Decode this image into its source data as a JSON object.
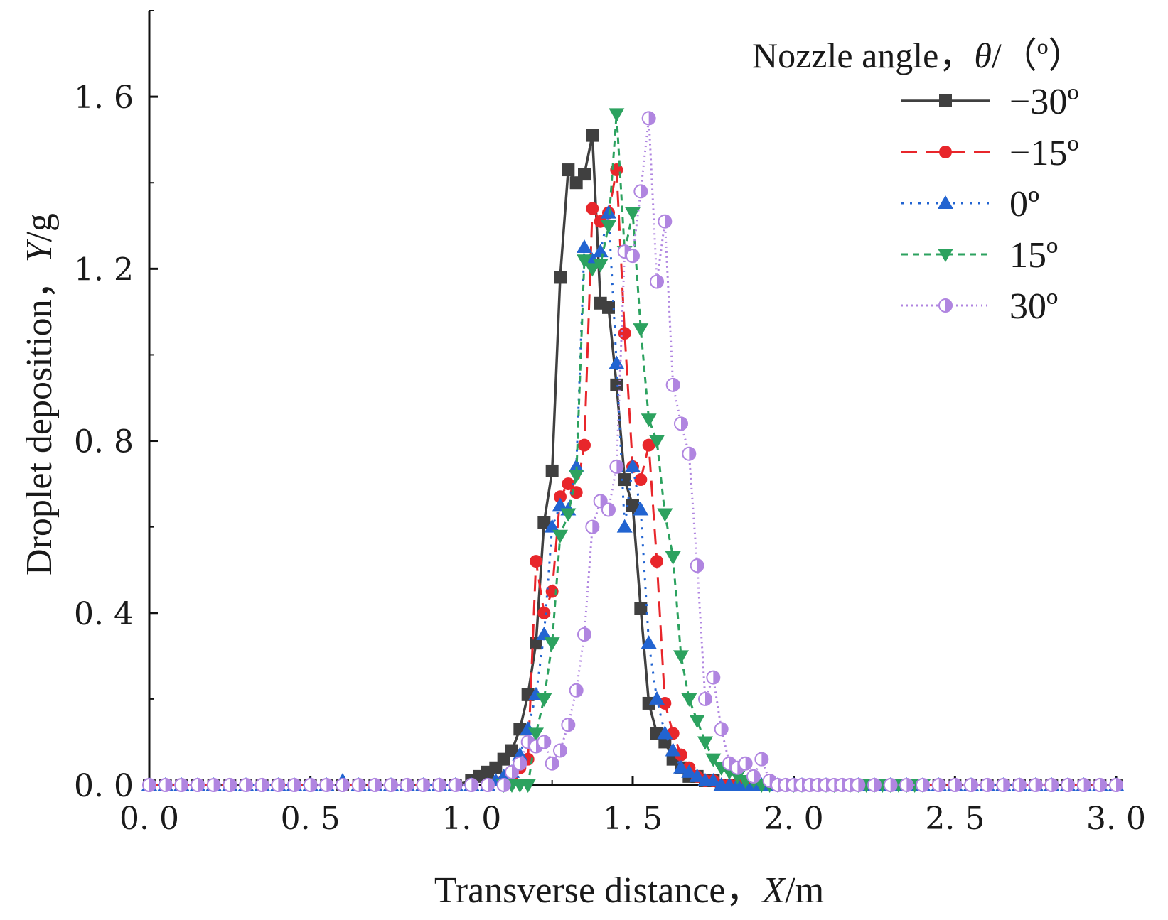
{
  "chart_data": {
    "type": "line",
    "title": "",
    "xlabel": {
      "prefix": "Transverse distance，",
      "var": "X",
      "unit": "/m"
    },
    "ylabel": {
      "prefix": "Droplet deposition，",
      "var": "Y",
      "unit": "/g"
    },
    "xlim": [
      0,
      3
    ],
    "ylim": [
      0,
      1.8
    ],
    "x_ticks": [
      0,
      0.5,
      1,
      1.5,
      2,
      2.5,
      3
    ],
    "x_tick_labels": [
      "0. 0",
      "0. 5",
      "1. 0",
      "1. 5",
      "2. 0",
      "2. 5",
      "3. 0"
    ],
    "y_ticks": [
      0,
      0.4,
      0.8,
      1.2,
      1.6
    ],
    "y_tick_labels": [
      "0. 0",
      "0. 4",
      "0. 8",
      "1. 2",
      "1. 6"
    ],
    "legend": {
      "title_prefix": "Nozzle angle，",
      "title_var": "θ",
      "title_suffix": "/（º）",
      "position": "top-right"
    },
    "series": [
      {
        "name": "−30º",
        "color": "#404040",
        "marker": "square",
        "dash": "solid",
        "x": [
          0.0,
          0.05,
          0.1,
          0.15,
          0.2,
          0.25,
          0.3,
          0.35,
          0.4,
          0.45,
          0.5,
          0.55,
          0.6,
          0.65,
          0.7,
          0.75,
          0.8,
          0.85,
          0.9,
          0.95,
          1.0,
          1.025,
          1.05,
          1.075,
          1.1,
          1.125,
          1.15,
          1.175,
          1.2,
          1.225,
          1.25,
          1.275,
          1.3,
          1.325,
          1.35,
          1.375,
          1.4,
          1.425,
          1.45,
          1.475,
          1.5,
          1.525,
          1.55,
          1.575,
          1.6,
          1.625,
          1.65,
          1.675,
          1.7,
          1.725,
          1.75,
          1.775,
          1.8,
          1.825,
          1.85,
          1.875,
          1.9,
          1.925,
          1.95,
          1.975,
          2.0,
          2.025,
          2.05,
          2.1,
          2.15,
          2.2,
          2.25,
          2.3,
          2.35,
          2.4,
          2.45,
          2.5,
          2.55,
          2.6,
          2.65,
          2.7,
          2.75,
          2.8,
          2.85,
          2.9,
          2.95,
          3.0
        ],
        "y": [
          0,
          0,
          0,
          0,
          0,
          0,
          0,
          0,
          0,
          0,
          0,
          0,
          0,
          0,
          0,
          0,
          0,
          0,
          0,
          0,
          0.01,
          0.02,
          0.03,
          0.04,
          0.06,
          0.08,
          0.13,
          0.21,
          0.33,
          0.61,
          0.73,
          1.18,
          1.43,
          1.4,
          1.42,
          1.51,
          1.12,
          1.11,
          0.93,
          0.71,
          0.65,
          0.41,
          0.19,
          0.12,
          0.1,
          0.06,
          0.04,
          0.02,
          0.02,
          0.01,
          0.01,
          0,
          0,
          0,
          0,
          0,
          0,
          0,
          0,
          0,
          0,
          0,
          0,
          0,
          0,
          0,
          0,
          0,
          0,
          0,
          0,
          0,
          0,
          0,
          0,
          0,
          0,
          0,
          0,
          0,
          0,
          0
        ]
      },
      {
        "name": "−15º",
        "color": "#e8262b",
        "marker": "diamond",
        "dash": "dashed",
        "x": [
          0.0,
          0.05,
          0.1,
          0.15,
          0.2,
          0.25,
          0.3,
          0.35,
          0.4,
          0.45,
          0.5,
          0.55,
          0.6,
          0.65,
          0.7,
          0.75,
          0.8,
          0.85,
          0.9,
          0.95,
          1.0,
          1.05,
          1.1,
          1.125,
          1.15,
          1.175,
          1.2,
          1.225,
          1.25,
          1.275,
          1.3,
          1.325,
          1.35,
          1.375,
          1.4,
          1.425,
          1.45,
          1.475,
          1.5,
          1.525,
          1.55,
          1.575,
          1.6,
          1.625,
          1.65,
          1.675,
          1.7,
          1.725,
          1.75,
          1.775,
          1.8,
          1.825,
          1.85,
          1.875,
          1.9,
          1.925,
          1.95,
          1.975,
          2.0,
          2.025,
          2.05,
          2.1,
          2.15,
          2.2,
          2.25,
          2.3,
          2.35,
          2.4,
          2.45,
          2.5,
          2.55,
          2.6,
          2.65,
          2.7,
          2.75,
          2.8,
          2.85,
          2.9,
          2.95,
          3.0
        ],
        "y": [
          0,
          0,
          0,
          0,
          0,
          0,
          0,
          0,
          0,
          0,
          0,
          0,
          0,
          0,
          0,
          0,
          0,
          0,
          0,
          0,
          0,
          0,
          0.01,
          0.02,
          0.04,
          0.06,
          0.52,
          0.4,
          0.45,
          0.67,
          0.7,
          0.68,
          0.79,
          1.34,
          1.31,
          1.33,
          1.43,
          1.05,
          0.74,
          0.71,
          0.79,
          0.52,
          0.19,
          0.12,
          0.07,
          0.04,
          0.02,
          0.01,
          0.01,
          0,
          0,
          0,
          0,
          0,
          0,
          0,
          0,
          0,
          0,
          0,
          0,
          0,
          0,
          0,
          0,
          0,
          0,
          0,
          0,
          0,
          0,
          0,
          0,
          0,
          0,
          0,
          0,
          0,
          0,
          0
        ]
      },
      {
        "name": "0º",
        "color": "#2264d1",
        "marker": "triangle-up",
        "dash": "dotted",
        "x": [
          0.0,
          0.05,
          0.1,
          0.15,
          0.2,
          0.25,
          0.3,
          0.35,
          0.4,
          0.45,
          0.5,
          0.55,
          0.6,
          0.65,
          0.7,
          0.75,
          0.8,
          0.85,
          0.9,
          0.95,
          1.0,
          1.05,
          1.075,
          1.1,
          1.125,
          1.15,
          1.175,
          1.2,
          1.225,
          1.25,
          1.275,
          1.3,
          1.325,
          1.35,
          1.375,
          1.4,
          1.425,
          1.45,
          1.475,
          1.5,
          1.525,
          1.55,
          1.575,
          1.6,
          1.625,
          1.65,
          1.675,
          1.7,
          1.725,
          1.75,
          1.775,
          1.8,
          1.825,
          1.85,
          1.875,
          1.9,
          1.925,
          1.95,
          1.975,
          2.0,
          2.025,
          2.05,
          2.1,
          2.15,
          2.2,
          2.25,
          2.3,
          2.35,
          2.4,
          2.45,
          2.5,
          2.55,
          2.6,
          2.65,
          2.7,
          2.75,
          2.8,
          2.85,
          2.9,
          2.95,
          3.0
        ],
        "y": [
          0,
          0,
          0,
          0,
          0,
          0,
          0,
          0,
          0,
          0,
          0,
          0,
          0.01,
          0,
          0,
          0,
          0,
          0,
          0,
          0,
          0,
          0,
          0.01,
          0.02,
          0.03,
          0.07,
          0.13,
          0.21,
          0.35,
          0.6,
          0.65,
          0.64,
          0.74,
          1.25,
          1.22,
          1.24,
          1.33,
          0.98,
          0.6,
          0.74,
          0.64,
          0.33,
          0.2,
          0.12,
          0.08,
          0.04,
          0.03,
          0.02,
          0.01,
          0.01,
          0,
          0,
          0,
          0,
          0,
          0,
          0,
          0,
          0,
          0,
          0,
          0,
          0,
          0,
          0,
          0,
          0,
          0,
          0,
          0,
          0,
          0,
          0,
          0,
          0,
          0,
          0,
          0,
          0,
          0,
          0
        ]
      },
      {
        "name": "15º",
        "color": "#2ca25f",
        "marker": "triangle-down",
        "dash": "short-dash",
        "x": [
          1.1,
          1.125,
          1.15,
          1.175,
          1.2,
          1.225,
          1.25,
          1.275,
          1.3,
          1.325,
          1.35,
          1.375,
          1.4,
          1.425,
          1.45,
          1.475,
          1.5,
          1.525,
          1.55,
          1.575,
          1.6,
          1.625,
          1.65,
          1.675,
          1.7,
          1.725,
          1.75,
          1.775,
          1.8,
          1.825,
          1.85,
          1.875,
          1.9,
          1.925,
          1.95,
          1.975,
          2.0,
          2.025,
          2.05,
          2.075,
          2.1,
          2.125,
          2.15,
          2.175,
          2.2,
          2.225,
          2.25,
          2.275,
          2.3,
          2.325,
          2.35,
          2.375,
          2.4
        ],
        "y": [
          0,
          0,
          0,
          0,
          0.12,
          0.2,
          0.33,
          0.58,
          0.63,
          0.72,
          1.22,
          1.2,
          1.21,
          1.3,
          1.56,
          1.24,
          1.33,
          1.06,
          0.85,
          0.8,
          0.63,
          0.53,
          0.3,
          0.2,
          0.15,
          0.1,
          0.06,
          0.04,
          0.03,
          0.02,
          0.01,
          0.01,
          0,
          0,
          0,
          0,
          0,
          0,
          0,
          0,
          0,
          0,
          0,
          0,
          0,
          0,
          0,
          0,
          0,
          0,
          0,
          0,
          0
        ]
      },
      {
        "name": "30º",
        "color": "#b085e0",
        "marker": "half-circle",
        "dash": "dense-dot",
        "x": [
          0.0,
          0.05,
          0.1,
          0.15,
          0.2,
          0.25,
          0.3,
          0.35,
          0.4,
          0.45,
          0.5,
          0.55,
          0.6,
          0.65,
          0.7,
          0.75,
          0.8,
          0.85,
          0.9,
          0.95,
          1.0,
          1.05,
          1.1,
          1.125,
          1.15,
          1.175,
          1.2,
          1.225,
          1.25,
          1.275,
          1.3,
          1.325,
          1.35,
          1.375,
          1.4,
          1.425,
          1.45,
          1.475,
          1.5,
          1.525,
          1.55,
          1.575,
          1.6,
          1.625,
          1.65,
          1.675,
          1.7,
          1.725,
          1.75,
          1.775,
          1.8,
          1.825,
          1.85,
          1.875,
          1.9,
          1.925,
          1.95,
          1.975,
          2.0,
          2.025,
          2.05,
          2.075,
          2.1,
          2.125,
          2.15,
          2.175,
          2.2,
          2.25,
          2.3,
          2.35,
          2.4,
          2.45,
          2.5,
          2.55,
          2.6,
          2.65,
          2.7,
          2.75,
          2.8,
          2.85,
          2.9,
          2.95,
          3.0
        ],
        "y": [
          0,
          0,
          0,
          0,
          0,
          0,
          0,
          0,
          0,
          0,
          0,
          0,
          0,
          0,
          0,
          0,
          0,
          0,
          0,
          0,
          0,
          0,
          0,
          0.03,
          0.05,
          0.1,
          0.09,
          0.1,
          0.05,
          0.08,
          0.14,
          0.22,
          0.35,
          0.6,
          0.66,
          0.64,
          0.74,
          1.24,
          1.23,
          1.38,
          1.55,
          1.17,
          1.31,
          0.93,
          0.84,
          0.77,
          0.51,
          0.2,
          0.25,
          0.13,
          0.05,
          0.04,
          0.05,
          0.02,
          0.06,
          0.01,
          0,
          0,
          0,
          0,
          0,
          0,
          0,
          0,
          0,
          0,
          0,
          0,
          0,
          0,
          0,
          0,
          0,
          0,
          0,
          0,
          0,
          0,
          0,
          0,
          0,
          0,
          0
        ]
      }
    ]
  }
}
